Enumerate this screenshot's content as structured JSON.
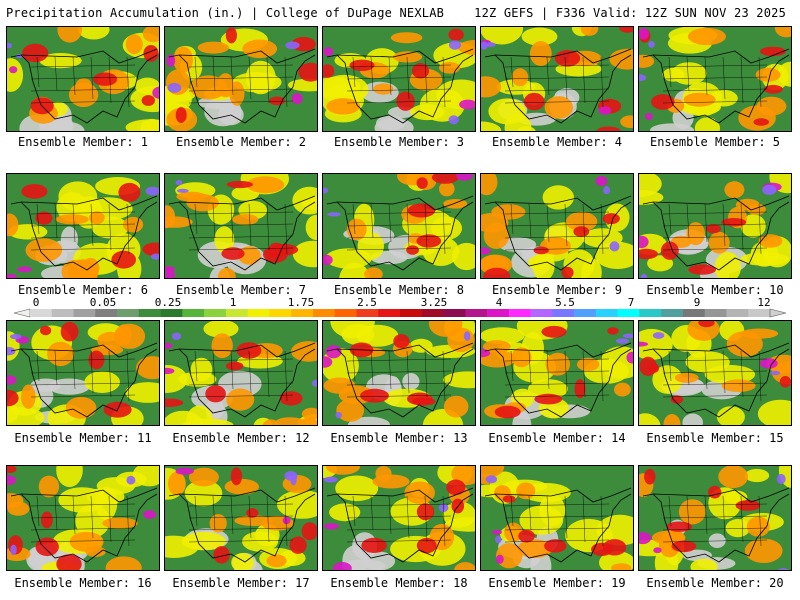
{
  "header": {
    "left": "Precipitation Accumulation (in.) | College of DuPage NEXLAB",
    "right": "12Z GEFS | F336 Valid: 12Z SUN NOV 23 2025"
  },
  "panels": [
    {
      "label": "Ensemble Member: 1"
    },
    {
      "label": "Ensemble Member: 2"
    },
    {
      "label": "Ensemble Member: 3"
    },
    {
      "label": "Ensemble Member: 4"
    },
    {
      "label": "Ensemble Member: 5"
    },
    {
      "label": "Ensemble Member: 6"
    },
    {
      "label": "Ensemble Member: 7"
    },
    {
      "label": "Ensemble Member: 8"
    },
    {
      "label": "Ensemble Member: 9"
    },
    {
      "label": "Ensemble Member: 10"
    },
    {
      "label": "Ensemble Member: 11"
    },
    {
      "label": "Ensemble Member: 12"
    },
    {
      "label": "Ensemble Member: 13"
    },
    {
      "label": "Ensemble Member: 14"
    },
    {
      "label": "Ensemble Member: 15"
    },
    {
      "label": "Ensemble Member: 16"
    },
    {
      "label": "Ensemble Member: 17"
    },
    {
      "label": "Ensemble Member: 18"
    },
    {
      "label": "Ensemble Member: 19"
    },
    {
      "label": "Ensemble Member: 20"
    }
  ],
  "colorbar": {
    "tick_labels": [
      "0",
      "0.05",
      "0.25",
      "1",
      "1.75",
      "2.5",
      "3.25",
      "4",
      "5.5",
      "7",
      "9",
      "12"
    ],
    "colors": [
      "#d8d8d8",
      "#bdbdbd",
      "#a0a0a0",
      "#7f7f7f",
      "#6e9e6e",
      "#3c8c3c",
      "#2a7a2a",
      "#56b43a",
      "#8cd23c",
      "#c8e632",
      "#f0f000",
      "#ffd700",
      "#ffb400",
      "#ff8c00",
      "#ff6400",
      "#f03c1e",
      "#e61414",
      "#c80a0a",
      "#a00a28",
      "#8c0a50",
      "#b4148c",
      "#dc14c8",
      "#ff28ff",
      "#b464ff",
      "#7878ff",
      "#50a0ff",
      "#28d2ff",
      "#00ffff",
      "#28c8c8",
      "#50a0a0",
      "#787878",
      "#969696",
      "#b4b4b4",
      "#c8c8c8"
    ]
  },
  "palette": {
    "land_green": "#3c8c3c",
    "dry_gray": "#cfcfcf",
    "yellow": "#f0f000",
    "orange": "#ff9600",
    "red": "#e61414",
    "magenta": "#dc14c8",
    "violet": "#8c64ff"
  }
}
